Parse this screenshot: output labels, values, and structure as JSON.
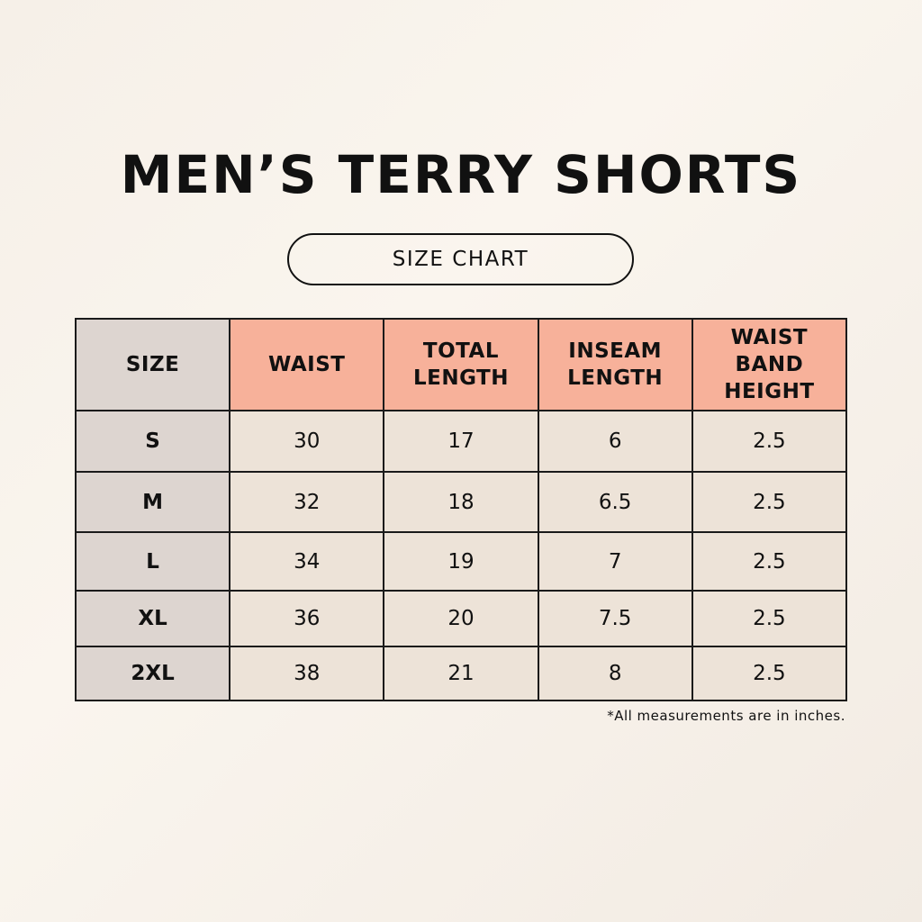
{
  "title": "MEN’S TERRY SHORTS",
  "subtitle": "SIZE CHART",
  "colors": {
    "header": "#f7b19a",
    "size_column": "#ddd5d0",
    "cell": "#ede3d8",
    "background": "#f7f1ea"
  },
  "table": {
    "headers": [
      "SIZE",
      "WAIST",
      "TOTAL\nLENGTH",
      "INSEAM\nLENGTH",
      "WAIST\nBAND\nHEIGHT"
    ],
    "rows": [
      [
        "S",
        "30",
        "17",
        "6",
        "2.5"
      ],
      [
        "M",
        "32",
        "18",
        "6.5",
        "2.5"
      ],
      [
        "L",
        "34",
        "19",
        "7",
        "2.5"
      ],
      [
        "XL",
        "36",
        "20",
        "7.5",
        "2.5"
      ],
      [
        "2XL",
        "38",
        "21",
        "8",
        "2.5"
      ]
    ]
  },
  "note": "*All measurements are in inches."
}
